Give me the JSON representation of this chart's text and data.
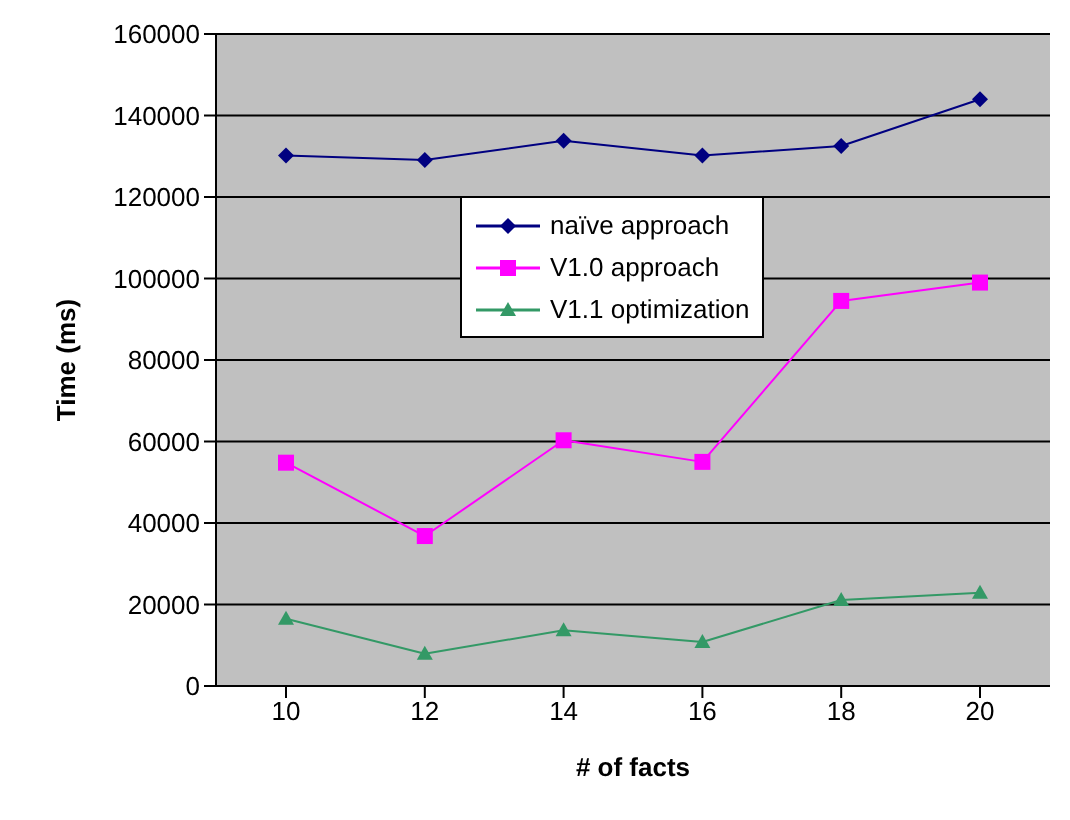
{
  "chart_data": {
    "type": "line",
    "xlabel": "# of facts",
    "ylabel": "Time (ms)",
    "categories": [
      "10",
      "12",
      "14",
      "16",
      "18",
      "20"
    ],
    "series": [
      {
        "name": "naïve approach",
        "color": "#000080",
        "marker": "diamond",
        "values": [
          130200,
          129100,
          133800,
          130200,
          132500,
          144000
        ]
      },
      {
        "name": "V1.0 approach",
        "color": "#ff00ff",
        "marker": "square",
        "values": [
          54800,
          36800,
          60300,
          55000,
          94500,
          99000
        ]
      },
      {
        "name": "V1.1 optimization",
        "color": "#339966",
        "marker": "triangle",
        "values": [
          16500,
          7900,
          13700,
          10800,
          21100,
          22900
        ]
      }
    ],
    "ylim": [
      0,
      160000
    ],
    "yticks": [
      0,
      20000,
      40000,
      60000,
      80000,
      100000,
      120000,
      140000,
      160000
    ],
    "grid": "y",
    "legend": "center"
  }
}
